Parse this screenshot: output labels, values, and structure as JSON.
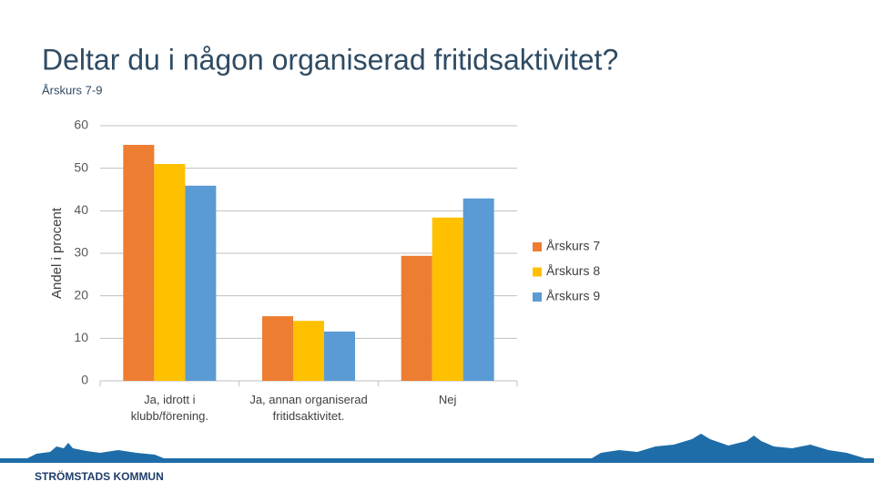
{
  "title": "Deltar du i någon organiserad fritidsaktivitet?",
  "subtitle": "Årskurs 7-9",
  "footer": "STRÖMSTADS KOMMUN",
  "chart_data": {
    "type": "bar",
    "y_label": "Andel i procent",
    "categories": [
      "Ja, idrott i klubb/förening.",
      "Ja, annan organiserad fritidsaktivitet.",
      "Nej"
    ],
    "series": [
      {
        "name": "Årskurs 7",
        "color": "#ED7D31",
        "values": [
          55.5,
          15.2,
          29.4
        ]
      },
      {
        "name": "Årskurs 8",
        "color": "#FFC000",
        "values": [
          51.0,
          14.1,
          38.4
        ]
      },
      {
        "name": "Årskurs 9",
        "color": "#5B9BD5",
        "values": [
          45.9,
          11.6,
          42.9
        ]
      }
    ],
    "ylim": [
      0,
      60
    ],
    "yticks": [
      0,
      10,
      20,
      30,
      40,
      50,
      60
    ],
    "grid": true,
    "legend": "right"
  }
}
